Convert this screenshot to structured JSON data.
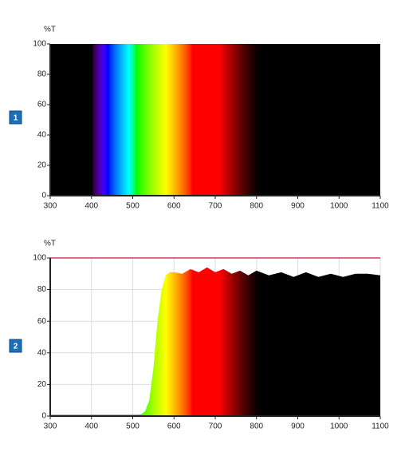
{
  "chart_data": [
    {
      "type": "area",
      "panel_label": "1",
      "ylabel": "%T",
      "x": [
        300,
        400,
        500,
        600,
        700,
        800,
        900,
        1000,
        1100
      ],
      "values": [
        100,
        100,
        100,
        100,
        100,
        100,
        100,
        100,
        100
      ],
      "xlim": [
        300,
        1100
      ],
      "xticks": [
        300,
        400,
        500,
        600,
        700,
        800,
        900,
        1000,
        1100
      ],
      "ylim": [
        0,
        100
      ],
      "yticks": [
        0,
        20,
        40,
        60,
        80,
        100
      ],
      "grid": false,
      "background": "#000000"
    },
    {
      "type": "area",
      "panel_label": "2",
      "ylabel": "%T",
      "x": [
        300,
        350,
        400,
        450,
        500,
        520,
        530,
        540,
        550,
        560,
        570,
        580,
        590,
        600,
        620,
        640,
        660,
        680,
        700,
        720,
        740,
        760,
        780,
        800,
        830,
        860,
        890,
        920,
        950,
        980,
        1010,
        1040,
        1070,
        1100
      ],
      "values": [
        0.5,
        0.5,
        0.5,
        0.5,
        0.5,
        1,
        3,
        10,
        30,
        60,
        80,
        89,
        91,
        91,
        90,
        93,
        91,
        94,
        91,
        93,
        90,
        92,
        89,
        92,
        89,
        91,
        88,
        91,
        88,
        90,
        88,
        90,
        90,
        89
      ],
      "xlim": [
        300,
        1100
      ],
      "xticks": [
        300,
        400,
        500,
        600,
        700,
        800,
        900,
        1000,
        1100
      ],
      "ylim": [
        0,
        100
      ],
      "yticks": [
        0,
        20,
        40,
        60,
        80,
        100
      ],
      "grid": true,
      "background": "#ffffff",
      "reference_line": {
        "value": 100,
        "color": "#d04060"
      }
    }
  ]
}
